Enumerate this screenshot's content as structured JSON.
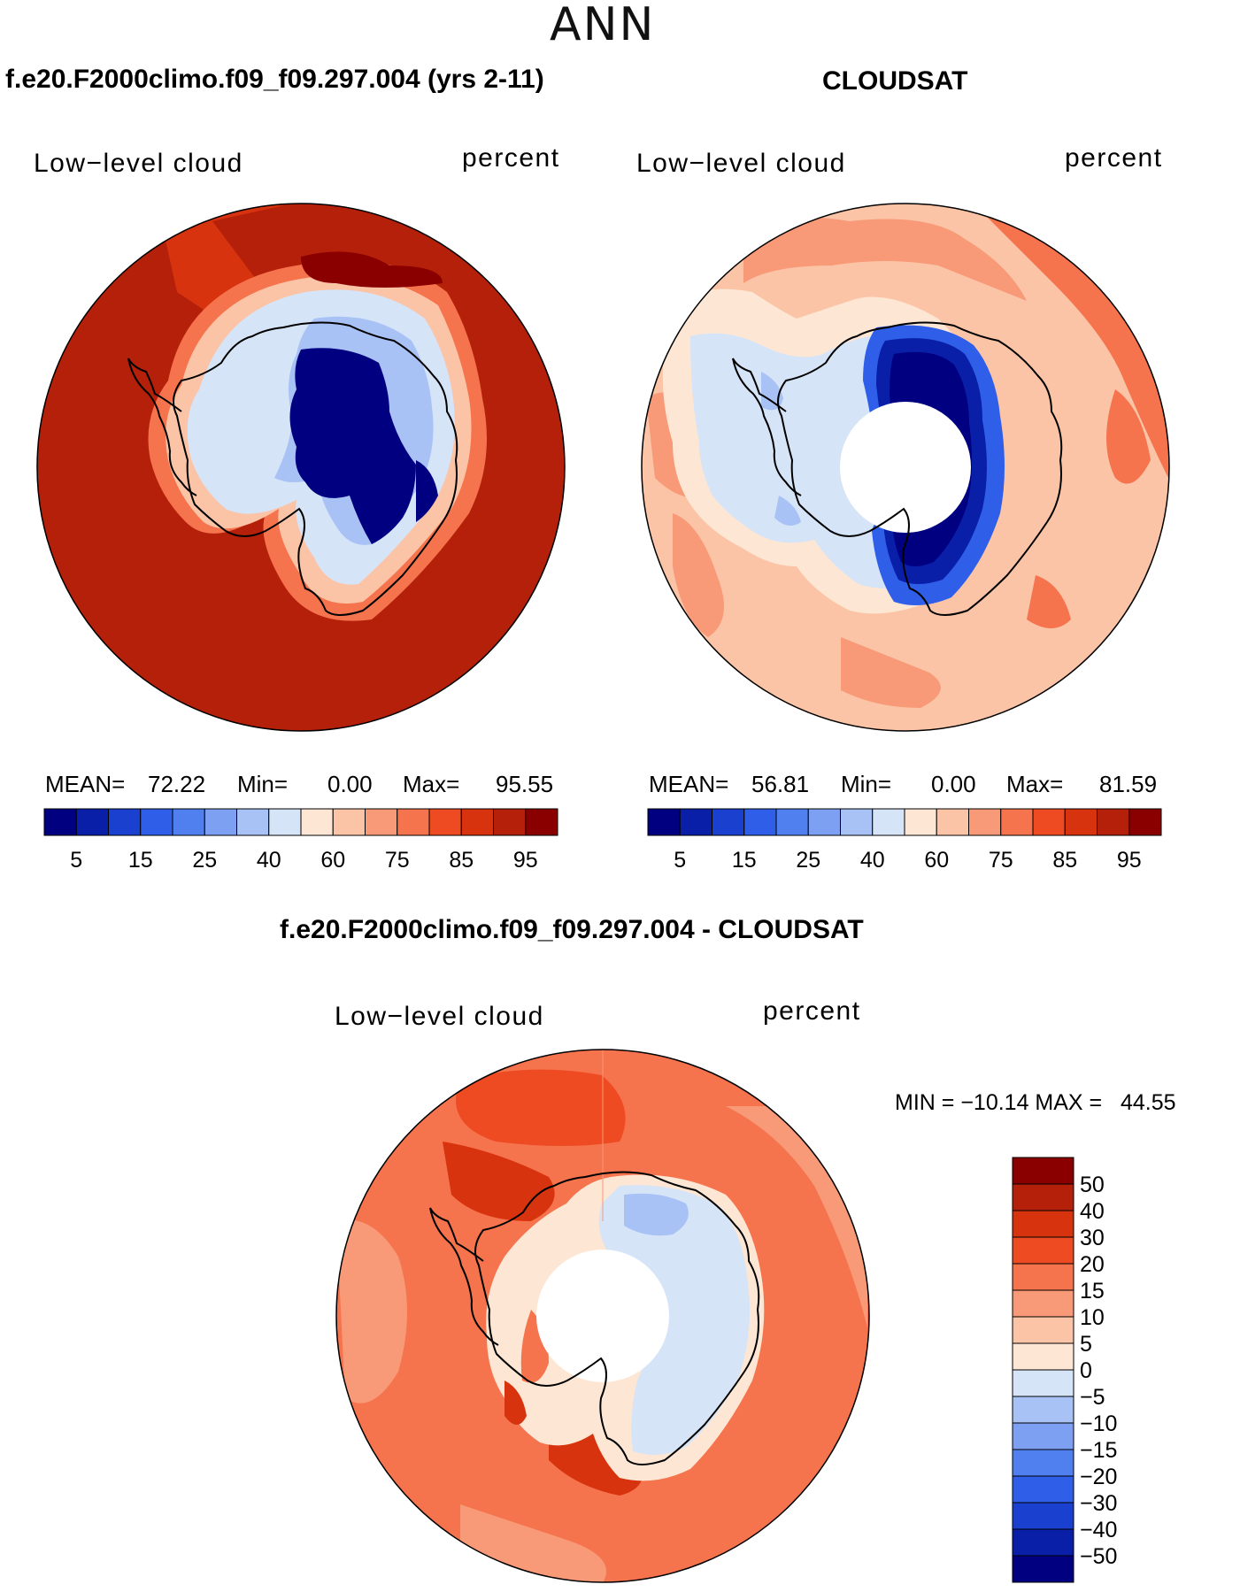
{
  "header": {
    "season": "ANN"
  },
  "panels": [
    {
      "id": "model",
      "case_title": "f.e20.F2000climo.f09_f09.297.004 (yrs 2-11)",
      "variable_label": "Low−level cloud",
      "units_label": "percent",
      "stats": {
        "mean_label": "MEAN=",
        "mean": "72.22",
        "min_label": "Min=",
        "min": "0.00",
        "max_label": "Max=",
        "max": "95.55"
      },
      "colorbar": {
        "colors": [
          "#000080",
          "#0a1fa8",
          "#1a40d0",
          "#2f5fe8",
          "#5080f0",
          "#7ea0f2",
          "#a9c2f5",
          "#d6e4f8",
          "#fde6d3",
          "#fbc4a6",
          "#f89a78",
          "#f5734d",
          "#ee4b22",
          "#d8330f",
          "#b5200a",
          "#8a0000"
        ],
        "tick_labels": [
          "5",
          "15",
          "25",
          "40",
          "60",
          "75",
          "85",
          "95"
        ]
      }
    },
    {
      "id": "obs",
      "case_title": "CLOUDSAT",
      "variable_label": "Low−level cloud",
      "units_label": "percent",
      "stats": {
        "mean_label": "MEAN=",
        "mean": "56.81",
        "min_label": "Min=",
        "min": "0.00",
        "max_label": "Max=",
        "max": "81.59"
      },
      "colorbar": {
        "colors": [
          "#000080",
          "#0a1fa8",
          "#1a40d0",
          "#2f5fe8",
          "#5080f0",
          "#7ea0f2",
          "#a9c2f5",
          "#d6e4f8",
          "#fde6d3",
          "#fbc4a6",
          "#f89a78",
          "#f5734d",
          "#ee4b22",
          "#d8330f",
          "#b5200a",
          "#8a0000"
        ],
        "tick_labels": [
          "5",
          "15",
          "25",
          "40",
          "60",
          "75",
          "85",
          "95"
        ]
      }
    }
  ],
  "difference": {
    "title": "f.e20.F2000climo.f09_f09.297.004 - CLOUDSAT",
    "variable_label": "Low−level cloud",
    "units_label": "percent",
    "minmax": "MIN = −10.14 MAX =   44.55",
    "colorbar": {
      "colors": [
        "#8a0000",
        "#b5200a",
        "#d8330f",
        "#ee4b22",
        "#f5734d",
        "#f89a78",
        "#fbc4a6",
        "#fde6d3",
        "#d6e4f8",
        "#a9c2f5",
        "#7ea0f2",
        "#5080f0",
        "#2f5fe8",
        "#1a40d0",
        "#0a1fa8",
        "#000080"
      ],
      "tick_labels": [
        "50",
        "40",
        "30",
        "20",
        "15",
        "10",
        "5",
        "0",
        "−5",
        "−10",
        "−15",
        "−20",
        "−30",
        "−40",
        "−50"
      ]
    }
  }
}
